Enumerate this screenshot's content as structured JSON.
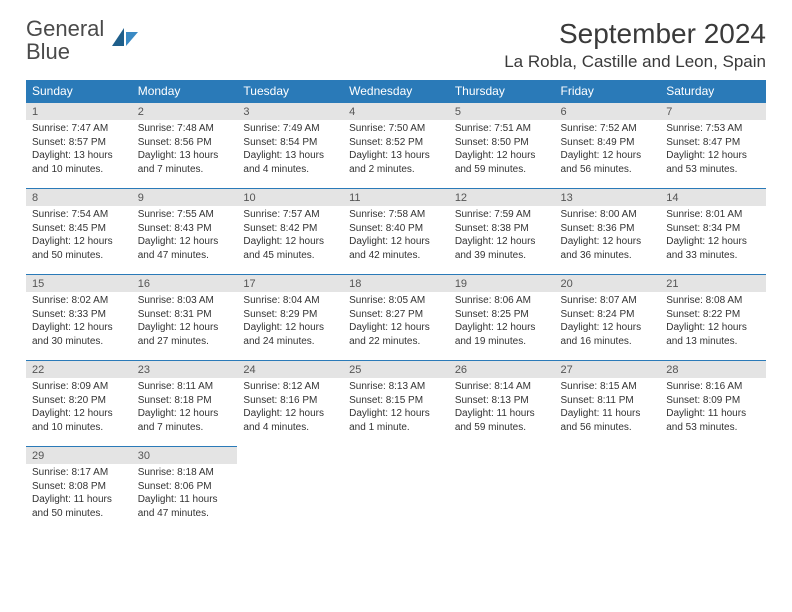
{
  "brand": {
    "part1": "General",
    "part2": "Blue"
  },
  "title": "September 2024",
  "location": "La Robla, Castille and Leon, Spain",
  "colors": {
    "header_bg": "#2a7ab8",
    "header_text": "#ffffff",
    "daynum_bg": "#e4e4e4",
    "daynum_text": "#555555",
    "cell_text": "#333333",
    "rule": "#2a7ab8",
    "page_bg": "#ffffff",
    "logo_gray": "#4a4a4a",
    "logo_blue": "#2a7ab8"
  },
  "typography": {
    "title_fontsize": 28,
    "location_fontsize": 17,
    "dow_fontsize": 12,
    "daynum_fontsize": 11,
    "cell_fontsize": 10
  },
  "dow": [
    "Sunday",
    "Monday",
    "Tuesday",
    "Wednesday",
    "Thursday",
    "Friday",
    "Saturday"
  ],
  "weeks": [
    [
      {
        "n": "1",
        "sr": "Sunrise: 7:47 AM",
        "ss": "Sunset: 8:57 PM",
        "dl": "Daylight: 13 hours and 10 minutes."
      },
      {
        "n": "2",
        "sr": "Sunrise: 7:48 AM",
        "ss": "Sunset: 8:56 PM",
        "dl": "Daylight: 13 hours and 7 minutes."
      },
      {
        "n": "3",
        "sr": "Sunrise: 7:49 AM",
        "ss": "Sunset: 8:54 PM",
        "dl": "Daylight: 13 hours and 4 minutes."
      },
      {
        "n": "4",
        "sr": "Sunrise: 7:50 AM",
        "ss": "Sunset: 8:52 PM",
        "dl": "Daylight: 13 hours and 2 minutes."
      },
      {
        "n": "5",
        "sr": "Sunrise: 7:51 AM",
        "ss": "Sunset: 8:50 PM",
        "dl": "Daylight: 12 hours and 59 minutes."
      },
      {
        "n": "6",
        "sr": "Sunrise: 7:52 AM",
        "ss": "Sunset: 8:49 PM",
        "dl": "Daylight: 12 hours and 56 minutes."
      },
      {
        "n": "7",
        "sr": "Sunrise: 7:53 AM",
        "ss": "Sunset: 8:47 PM",
        "dl": "Daylight: 12 hours and 53 minutes."
      }
    ],
    [
      {
        "n": "8",
        "sr": "Sunrise: 7:54 AM",
        "ss": "Sunset: 8:45 PM",
        "dl": "Daylight: 12 hours and 50 minutes."
      },
      {
        "n": "9",
        "sr": "Sunrise: 7:55 AM",
        "ss": "Sunset: 8:43 PM",
        "dl": "Daylight: 12 hours and 47 minutes."
      },
      {
        "n": "10",
        "sr": "Sunrise: 7:57 AM",
        "ss": "Sunset: 8:42 PM",
        "dl": "Daylight: 12 hours and 45 minutes."
      },
      {
        "n": "11",
        "sr": "Sunrise: 7:58 AM",
        "ss": "Sunset: 8:40 PM",
        "dl": "Daylight: 12 hours and 42 minutes."
      },
      {
        "n": "12",
        "sr": "Sunrise: 7:59 AM",
        "ss": "Sunset: 8:38 PM",
        "dl": "Daylight: 12 hours and 39 minutes."
      },
      {
        "n": "13",
        "sr": "Sunrise: 8:00 AM",
        "ss": "Sunset: 8:36 PM",
        "dl": "Daylight: 12 hours and 36 minutes."
      },
      {
        "n": "14",
        "sr": "Sunrise: 8:01 AM",
        "ss": "Sunset: 8:34 PM",
        "dl": "Daylight: 12 hours and 33 minutes."
      }
    ],
    [
      {
        "n": "15",
        "sr": "Sunrise: 8:02 AM",
        "ss": "Sunset: 8:33 PM",
        "dl": "Daylight: 12 hours and 30 minutes."
      },
      {
        "n": "16",
        "sr": "Sunrise: 8:03 AM",
        "ss": "Sunset: 8:31 PM",
        "dl": "Daylight: 12 hours and 27 minutes."
      },
      {
        "n": "17",
        "sr": "Sunrise: 8:04 AM",
        "ss": "Sunset: 8:29 PM",
        "dl": "Daylight: 12 hours and 24 minutes."
      },
      {
        "n": "18",
        "sr": "Sunrise: 8:05 AM",
        "ss": "Sunset: 8:27 PM",
        "dl": "Daylight: 12 hours and 22 minutes."
      },
      {
        "n": "19",
        "sr": "Sunrise: 8:06 AM",
        "ss": "Sunset: 8:25 PM",
        "dl": "Daylight: 12 hours and 19 minutes."
      },
      {
        "n": "20",
        "sr": "Sunrise: 8:07 AM",
        "ss": "Sunset: 8:24 PM",
        "dl": "Daylight: 12 hours and 16 minutes."
      },
      {
        "n": "21",
        "sr": "Sunrise: 8:08 AM",
        "ss": "Sunset: 8:22 PM",
        "dl": "Daylight: 12 hours and 13 minutes."
      }
    ],
    [
      {
        "n": "22",
        "sr": "Sunrise: 8:09 AM",
        "ss": "Sunset: 8:20 PM",
        "dl": "Daylight: 12 hours and 10 minutes."
      },
      {
        "n": "23",
        "sr": "Sunrise: 8:11 AM",
        "ss": "Sunset: 8:18 PM",
        "dl": "Daylight: 12 hours and 7 minutes."
      },
      {
        "n": "24",
        "sr": "Sunrise: 8:12 AM",
        "ss": "Sunset: 8:16 PM",
        "dl": "Daylight: 12 hours and 4 minutes."
      },
      {
        "n": "25",
        "sr": "Sunrise: 8:13 AM",
        "ss": "Sunset: 8:15 PM",
        "dl": "Daylight: 12 hours and 1 minute."
      },
      {
        "n": "26",
        "sr": "Sunrise: 8:14 AM",
        "ss": "Sunset: 8:13 PM",
        "dl": "Daylight: 11 hours and 59 minutes."
      },
      {
        "n": "27",
        "sr": "Sunrise: 8:15 AM",
        "ss": "Sunset: 8:11 PM",
        "dl": "Daylight: 11 hours and 56 minutes."
      },
      {
        "n": "28",
        "sr": "Sunrise: 8:16 AM",
        "ss": "Sunset: 8:09 PM",
        "dl": "Daylight: 11 hours and 53 minutes."
      }
    ],
    [
      {
        "n": "29",
        "sr": "Sunrise: 8:17 AM",
        "ss": "Sunset: 8:08 PM",
        "dl": "Daylight: 11 hours and 50 minutes."
      },
      {
        "n": "30",
        "sr": "Sunrise: 8:18 AM",
        "ss": "Sunset: 8:06 PM",
        "dl": "Daylight: 11 hours and 47 minutes."
      },
      null,
      null,
      null,
      null,
      null
    ]
  ]
}
